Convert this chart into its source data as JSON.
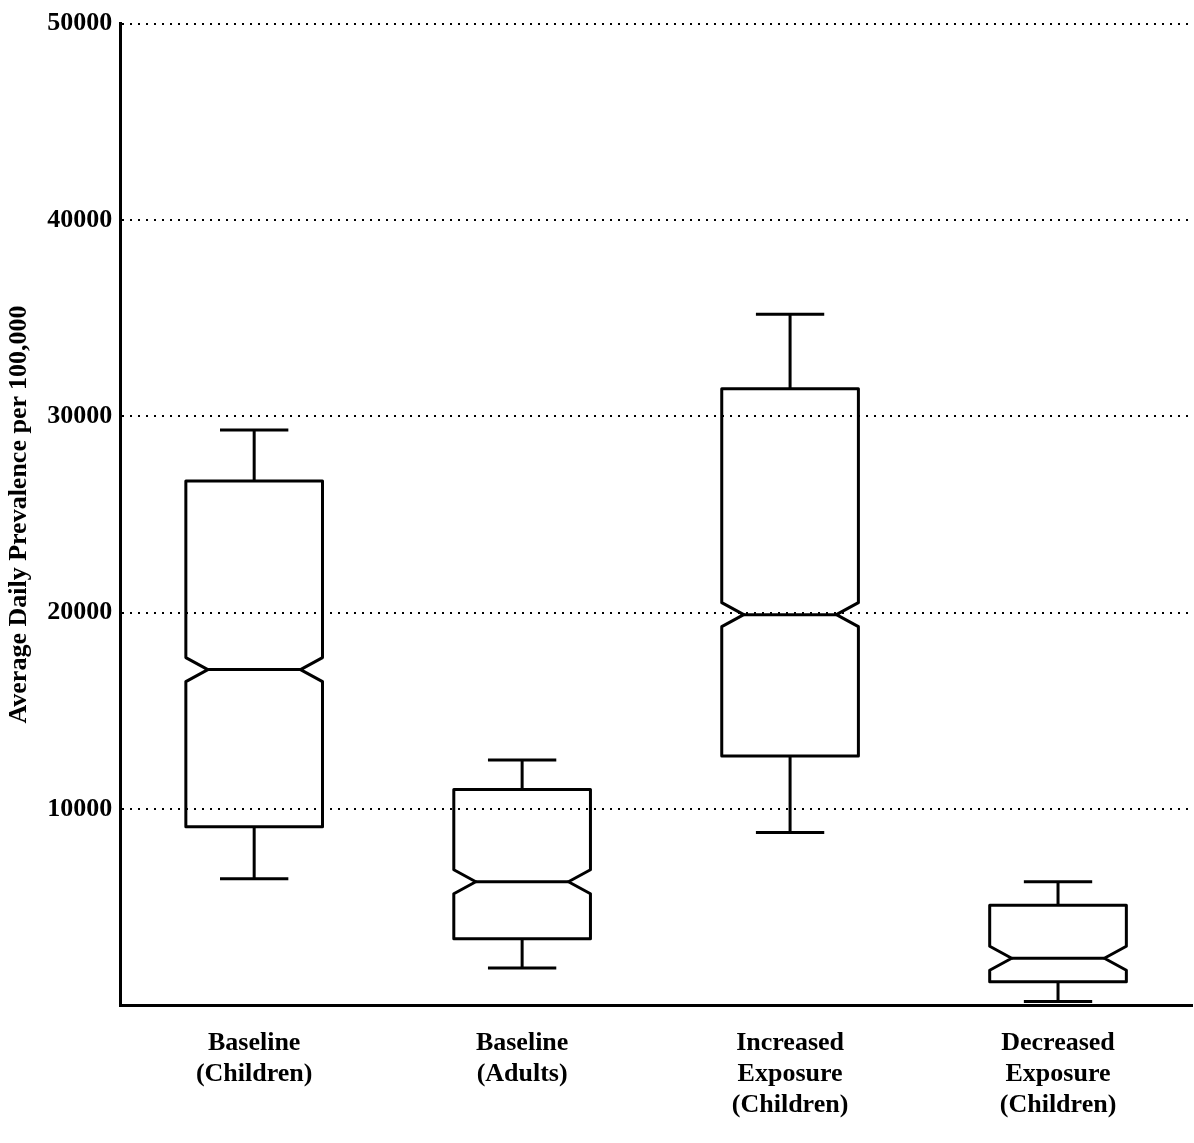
{
  "chart_data": {
    "type": "box",
    "ylabel": "Average Daily Prevalence per 100,000",
    "categories": [
      "Baseline (Children)",
      "Baseline (Adults)",
      "Increased Exposure (Children)",
      "Decreased Exposure (Children)"
    ],
    "boxes": [
      {
        "low": 6450,
        "q1": 9100,
        "median": 17100,
        "q3": 26700,
        "high": 29300
      },
      {
        "low": 1900,
        "q1": 3400,
        "median": 6300,
        "q3": 11000,
        "high": 12500
      },
      {
        "low": 8800,
        "q1": 12700,
        "median": 19900,
        "q3": 31400,
        "high": 35200
      },
      {
        "low": 200,
        "q1": 1200,
        "median": 2400,
        "q3": 5100,
        "high": 6300
      }
    ],
    "color": "#000000",
    "ylim": [
      0,
      50000
    ],
    "yticks": [
      10000,
      20000,
      30000,
      40000,
      50000
    ],
    "grid": "y",
    "line_style": "dotted",
    "legend": false
  }
}
